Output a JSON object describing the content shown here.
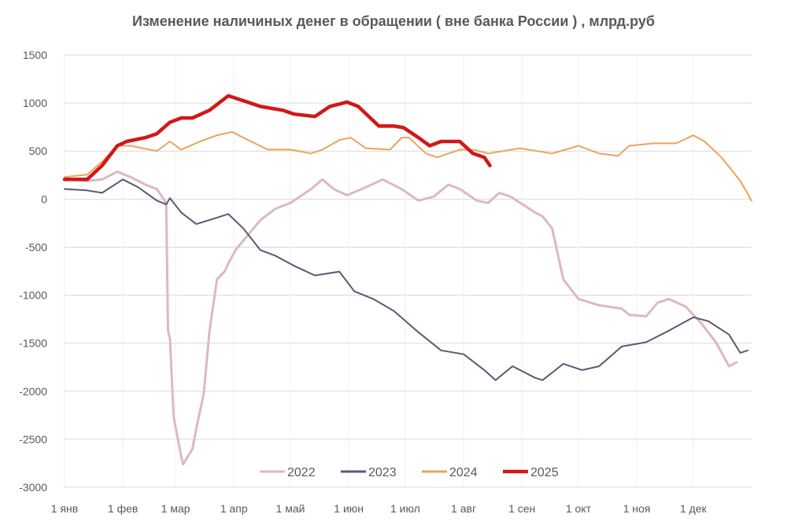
{
  "chart_data": {
    "type": "line",
    "title": "Изменение наличиных денег в обращении ( вне банка России ) , млрд.руб",
    "xlabel": "",
    "ylabel": "",
    "ylim": [
      -3000,
      1500
    ],
    "xlim_days": [
      0,
      365
    ],
    "yticks": [
      1500,
      1000,
      500,
      0,
      -500,
      -1000,
      -1500,
      -2000,
      -2500,
      -3000
    ],
    "xticks": [
      {
        "label": "1 янв",
        "day": 0
      },
      {
        "label": "1 фев",
        "day": 31
      },
      {
        "label": "1 мар",
        "day": 59
      },
      {
        "label": "1 апр",
        "day": 90
      },
      {
        "label": "1 май",
        "day": 120
      },
      {
        "label": "1 июн",
        "day": 151
      },
      {
        "label": "1 июл",
        "day": 181
      },
      {
        "label": "1 авг",
        "day": 212
      },
      {
        "label": "1 сен",
        "day": 243
      },
      {
        "label": "1 окт",
        "day": 273
      },
      {
        "label": "1 ноя",
        "day": 304
      },
      {
        "label": "1 дек",
        "day": 334
      }
    ],
    "grid": true,
    "legend_position": "bottom",
    "series": [
      {
        "name": "2022",
        "color": "#ddb8c0",
        "width": 3,
        "points": [
          [
            0,
            205
          ],
          [
            12,
            190
          ],
          [
            20,
            205
          ],
          [
            28,
            285
          ],
          [
            35,
            230
          ],
          [
            43,
            150
          ],
          [
            49,
            105
          ],
          [
            54,
            -40
          ],
          [
            55,
            -1370
          ],
          [
            56,
            -1450
          ],
          [
            58,
            -2270
          ],
          [
            62,
            -2680
          ],
          [
            63,
            -2760
          ],
          [
            68,
            -2600
          ],
          [
            70,
            -2390
          ],
          [
            74,
            -2020
          ],
          [
            77,
            -1370
          ],
          [
            81,
            -835
          ],
          [
            85,
            -755
          ],
          [
            87,
            -670
          ],
          [
            91,
            -525
          ],
          [
            97,
            -385
          ],
          [
            104,
            -220
          ],
          [
            112,
            -100
          ],
          [
            120,
            -40
          ],
          [
            131,
            105
          ],
          [
            137,
            205
          ],
          [
            143,
            105
          ],
          [
            150,
            40
          ],
          [
            158,
            105
          ],
          [
            169,
            205
          ],
          [
            179,
            105
          ],
          [
            188,
            -15
          ],
          [
            196,
            25
          ],
          [
            204,
            150
          ],
          [
            210,
            105
          ],
          [
            219,
            -15
          ],
          [
            225,
            -40
          ],
          [
            231,
            65
          ],
          [
            237,
            25
          ],
          [
            250,
            -140
          ],
          [
            254,
            -180
          ],
          [
            259,
            -305
          ],
          [
            265,
            -835
          ],
          [
            273,
            -1040
          ],
          [
            284,
            -1105
          ],
          [
            296,
            -1140
          ],
          [
            300,
            -1205
          ],
          [
            309,
            -1220
          ],
          [
            315,
            -1080
          ],
          [
            321,
            -1040
          ],
          [
            330,
            -1120
          ],
          [
            338,
            -1285
          ],
          [
            346,
            -1490
          ],
          [
            353,
            -1740
          ],
          [
            357,
            -1700
          ]
        ]
      },
      {
        "name": "2023",
        "color": "#5c5874",
        "width": 2,
        "points": [
          [
            0,
            105
          ],
          [
            12,
            90
          ],
          [
            20,
            65
          ],
          [
            31,
            205
          ],
          [
            39,
            125
          ],
          [
            49,
            -15
          ],
          [
            54,
            -55
          ],
          [
            56,
            10
          ],
          [
            62,
            -140
          ],
          [
            70,
            -260
          ],
          [
            79,
            -205
          ],
          [
            87,
            -155
          ],
          [
            95,
            -305
          ],
          [
            104,
            -530
          ],
          [
            112,
            -590
          ],
          [
            122,
            -695
          ],
          [
            133,
            -795
          ],
          [
            146,
            -755
          ],
          [
            154,
            -960
          ],
          [
            164,
            -1040
          ],
          [
            175,
            -1165
          ],
          [
            187,
            -1370
          ],
          [
            200,
            -1575
          ],
          [
            212,
            -1615
          ],
          [
            223,
            -1780
          ],
          [
            229,
            -1885
          ],
          [
            238,
            -1740
          ],
          [
            250,
            -1860
          ],
          [
            254,
            -1885
          ],
          [
            265,
            -1715
          ],
          [
            275,
            -1780
          ],
          [
            284,
            -1740
          ],
          [
            296,
            -1535
          ],
          [
            309,
            -1490
          ],
          [
            321,
            -1370
          ],
          [
            334,
            -1230
          ],
          [
            342,
            -1270
          ],
          [
            353,
            -1410
          ],
          [
            359,
            -1600
          ],
          [
            363,
            -1575
          ]
        ]
      },
      {
        "name": "2024",
        "color": "#e8a55a",
        "width": 2,
        "points": [
          [
            0,
            230
          ],
          [
            12,
            255
          ],
          [
            20,
            390
          ],
          [
            28,
            555
          ],
          [
            35,
            555
          ],
          [
            49,
            500
          ],
          [
            56,
            600
          ],
          [
            62,
            515
          ],
          [
            72,
            600
          ],
          [
            81,
            665
          ],
          [
            89,
            700
          ],
          [
            95,
            640
          ],
          [
            108,
            515
          ],
          [
            120,
            515
          ],
          [
            131,
            475
          ],
          [
            137,
            515
          ],
          [
            146,
            615
          ],
          [
            152,
            640
          ],
          [
            160,
            530
          ],
          [
            173,
            515
          ],
          [
            179,
            640
          ],
          [
            183,
            640
          ],
          [
            192,
            475
          ],
          [
            198,
            435
          ],
          [
            210,
            515
          ],
          [
            217,
            515
          ],
          [
            225,
            475
          ],
          [
            242,
            530
          ],
          [
            259,
            475
          ],
          [
            273,
            555
          ],
          [
            284,
            475
          ],
          [
            294,
            450
          ],
          [
            300,
            555
          ],
          [
            313,
            580
          ],
          [
            325,
            580
          ],
          [
            334,
            665
          ],
          [
            340,
            600
          ],
          [
            349,
            435
          ],
          [
            359,
            190
          ],
          [
            365,
            -15
          ]
        ]
      },
      {
        "name": "2025",
        "color": "#d01818",
        "width": 4.5,
        "points": [
          [
            0,
            205
          ],
          [
            12,
            205
          ],
          [
            20,
            350
          ],
          [
            28,
            555
          ],
          [
            33,
            600
          ],
          [
            43,
            640
          ],
          [
            49,
            680
          ],
          [
            56,
            800
          ],
          [
            62,
            845
          ],
          [
            68,
            845
          ],
          [
            77,
            925
          ],
          [
            87,
            1075
          ],
          [
            95,
            1025
          ],
          [
            104,
            965
          ],
          [
            116,
            925
          ],
          [
            122,
            885
          ],
          [
            133,
            860
          ],
          [
            141,
            965
          ],
          [
            150,
            1010
          ],
          [
            156,
            965
          ],
          [
            167,
            760
          ],
          [
            175,
            760
          ],
          [
            180,
            745
          ],
          [
            188,
            640
          ],
          [
            194,
            555
          ],
          [
            200,
            600
          ],
          [
            210,
            600
          ],
          [
            217,
            475
          ],
          [
            223,
            435
          ],
          [
            226,
            350
          ]
        ]
      }
    ]
  }
}
